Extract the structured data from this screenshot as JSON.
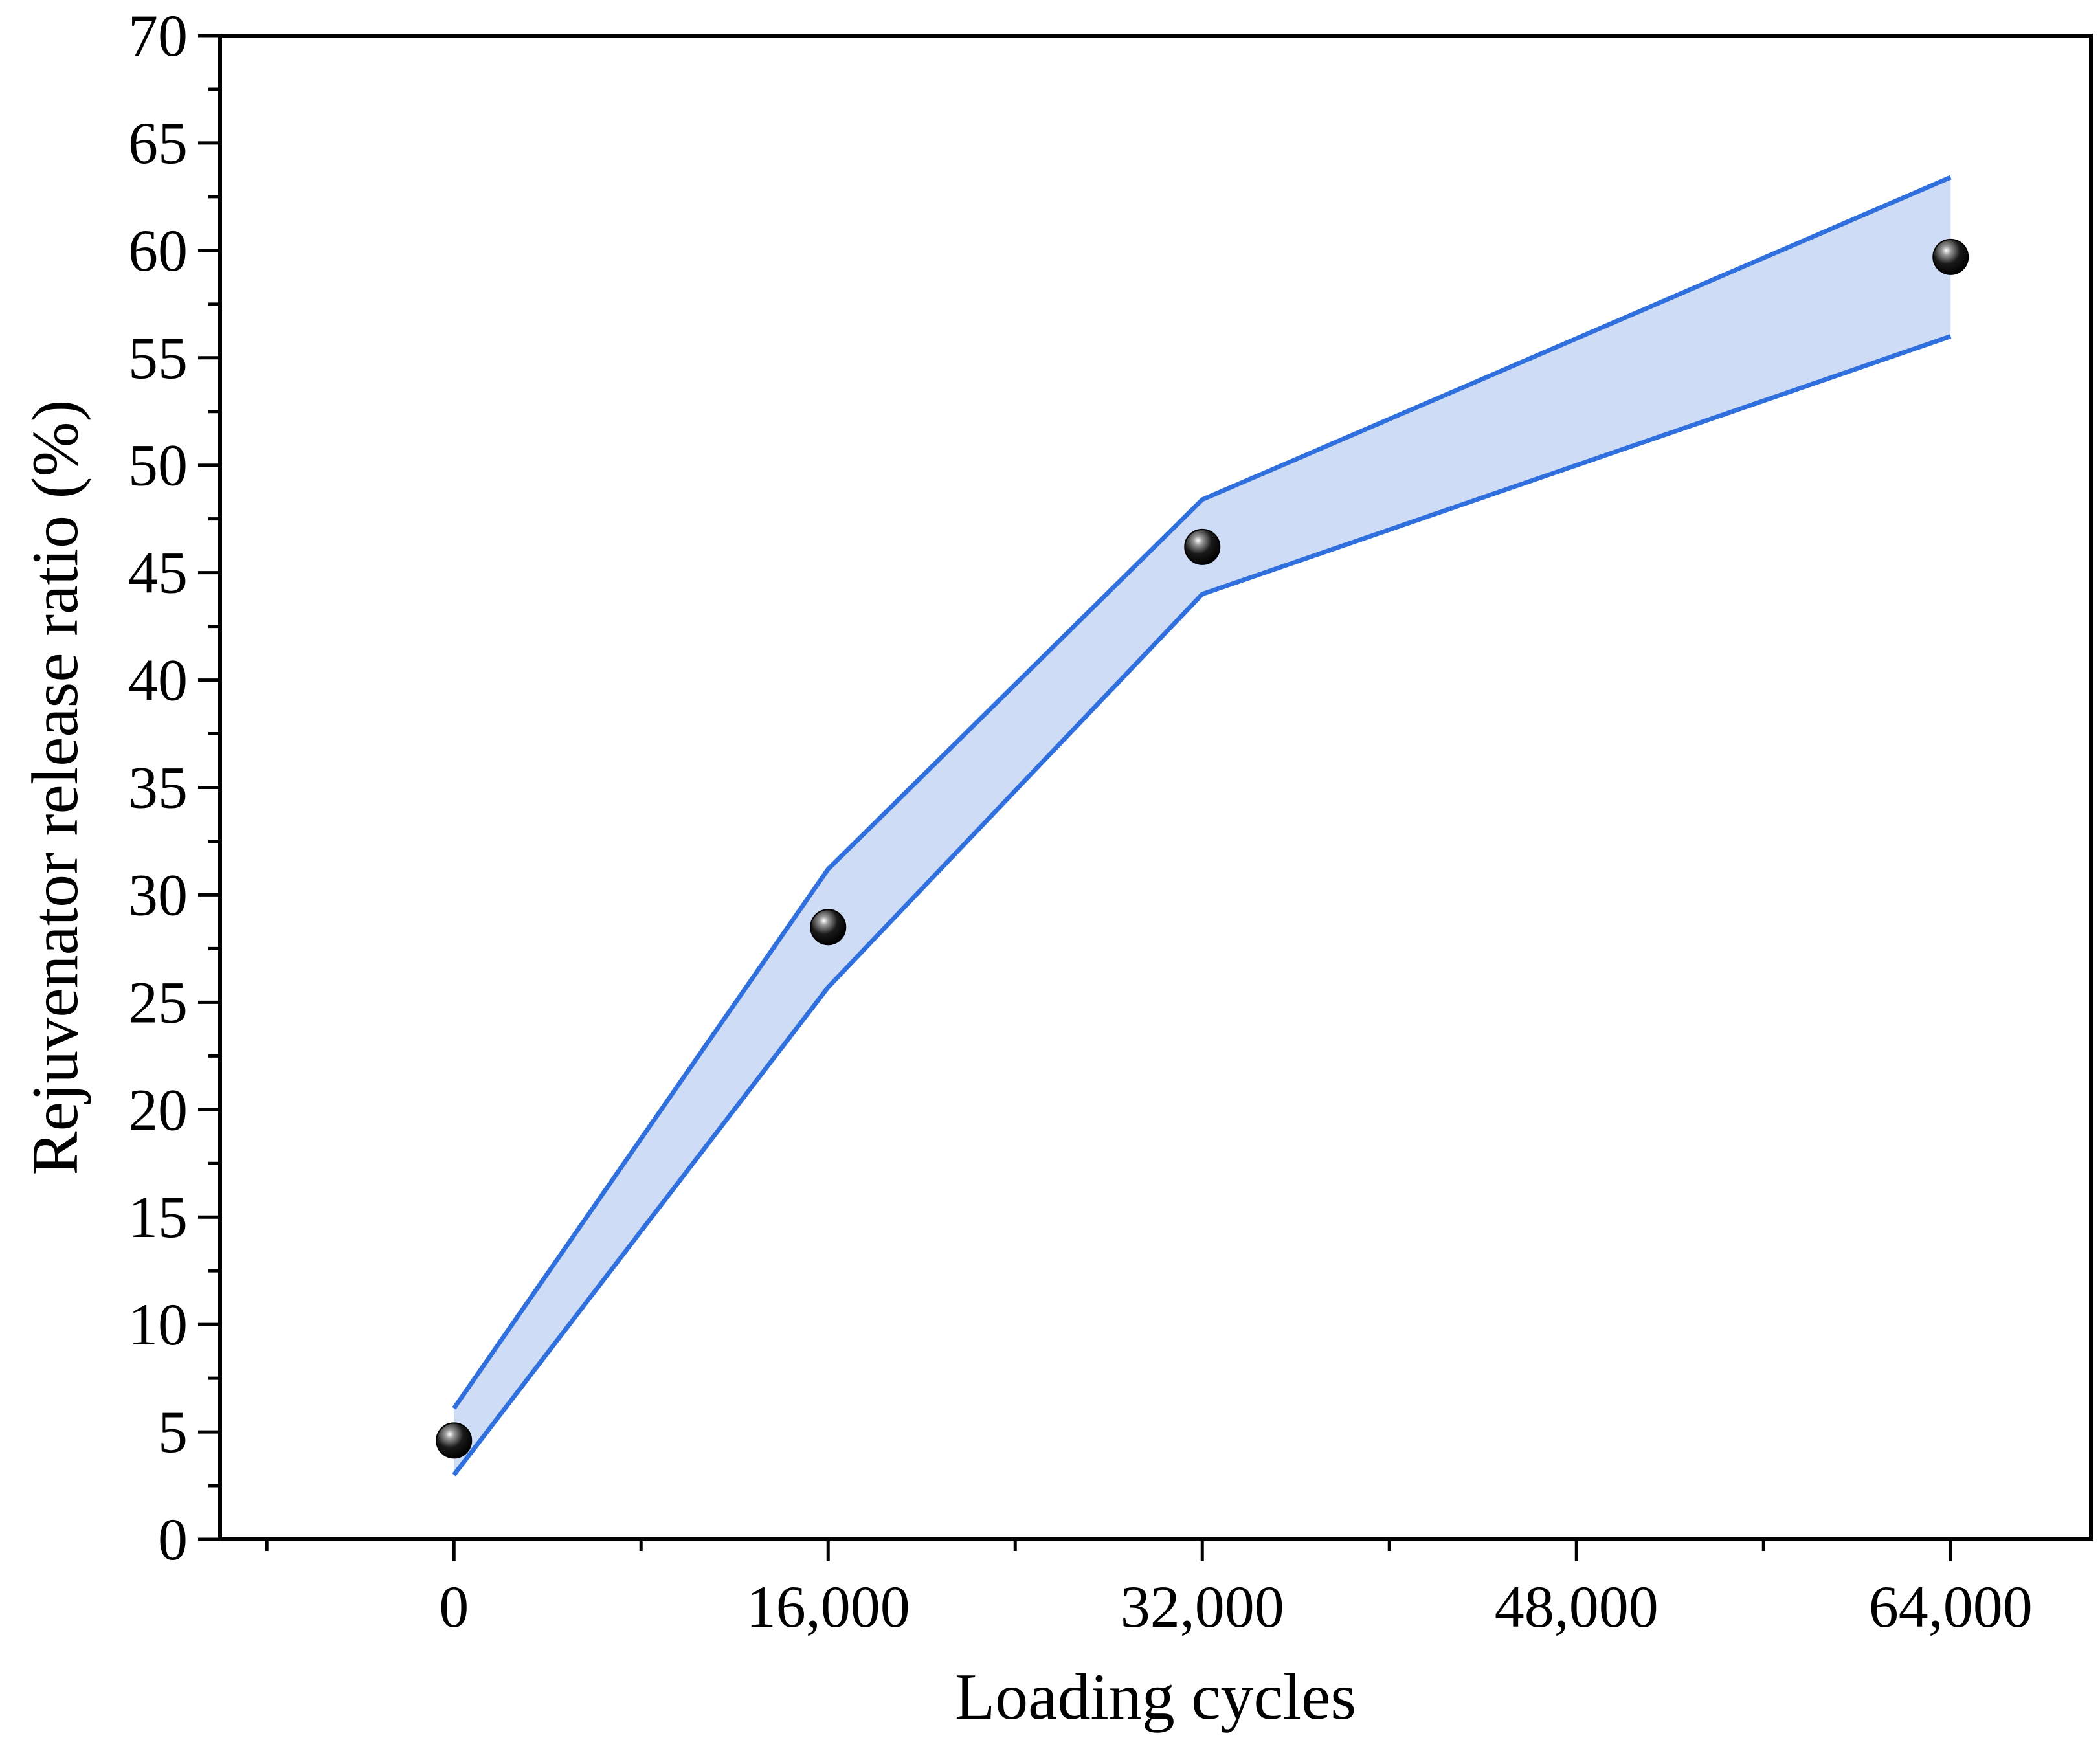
{
  "chart_data": {
    "type": "line",
    "xlabel": "Loading cycles",
    "ylabel": "Rejuvenator release ratio (%)",
    "x": [
      0,
      16000,
      32000,
      64000
    ],
    "x_ticks": [
      0,
      16000,
      32000,
      48000,
      64000
    ],
    "x_tick_labels": [
      "0",
      "16,000",
      "32,000",
      "48,000",
      "64,000"
    ],
    "xlim": [
      -10000,
      70000
    ],
    "ylim": [
      0,
      70
    ],
    "y_ticks": [
      0,
      5,
      10,
      15,
      20,
      25,
      30,
      35,
      40,
      45,
      50,
      55,
      60,
      65,
      70
    ],
    "y_tick_labels": [
      "0",
      "5",
      "10",
      "15",
      "20",
      "25",
      "30",
      "35",
      "40",
      "45",
      "50",
      "55",
      "60",
      "65",
      "70"
    ],
    "series": [
      {
        "values": [
          4.6,
          28.5,
          46.2,
          59.7
        ]
      }
    ],
    "band": {
      "upper": [
        6.1,
        31.2,
        48.4,
        63.4
      ],
      "lower": [
        3.0,
        25.7,
        44.0,
        56.0
      ]
    },
    "colors": {
      "band_line": "#2f6fde",
      "band_fill": "#cfdcf5",
      "marker": "#000000"
    },
    "grid": false,
    "legend": "none"
  }
}
